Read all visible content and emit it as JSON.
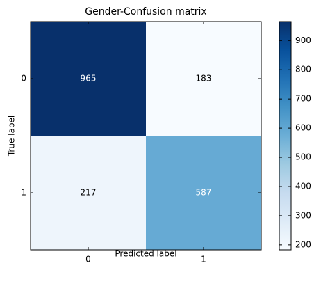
{
  "chart_data": {
    "type": "heatmap",
    "title": "Gender-Confusion matrix",
    "x_label": "Predicted label",
    "y_label": "True label",
    "x_categories": [
      "0",
      "1"
    ],
    "y_categories": [
      "0",
      "1"
    ],
    "values": [
      [
        965,
        183
      ],
      [
        217,
        587
      ]
    ],
    "colormap": [
      "#f7fbff",
      "#deebf7",
      "#c6dbef",
      "#9ecae1",
      "#6baed6",
      "#4292c6",
      "#2171b5",
      "#08519c",
      "#08306b"
    ],
    "clim": [
      183,
      965
    ],
    "cbar_ticks": [
      200,
      300,
      400,
      500,
      600,
      700,
      800,
      900
    ]
  }
}
